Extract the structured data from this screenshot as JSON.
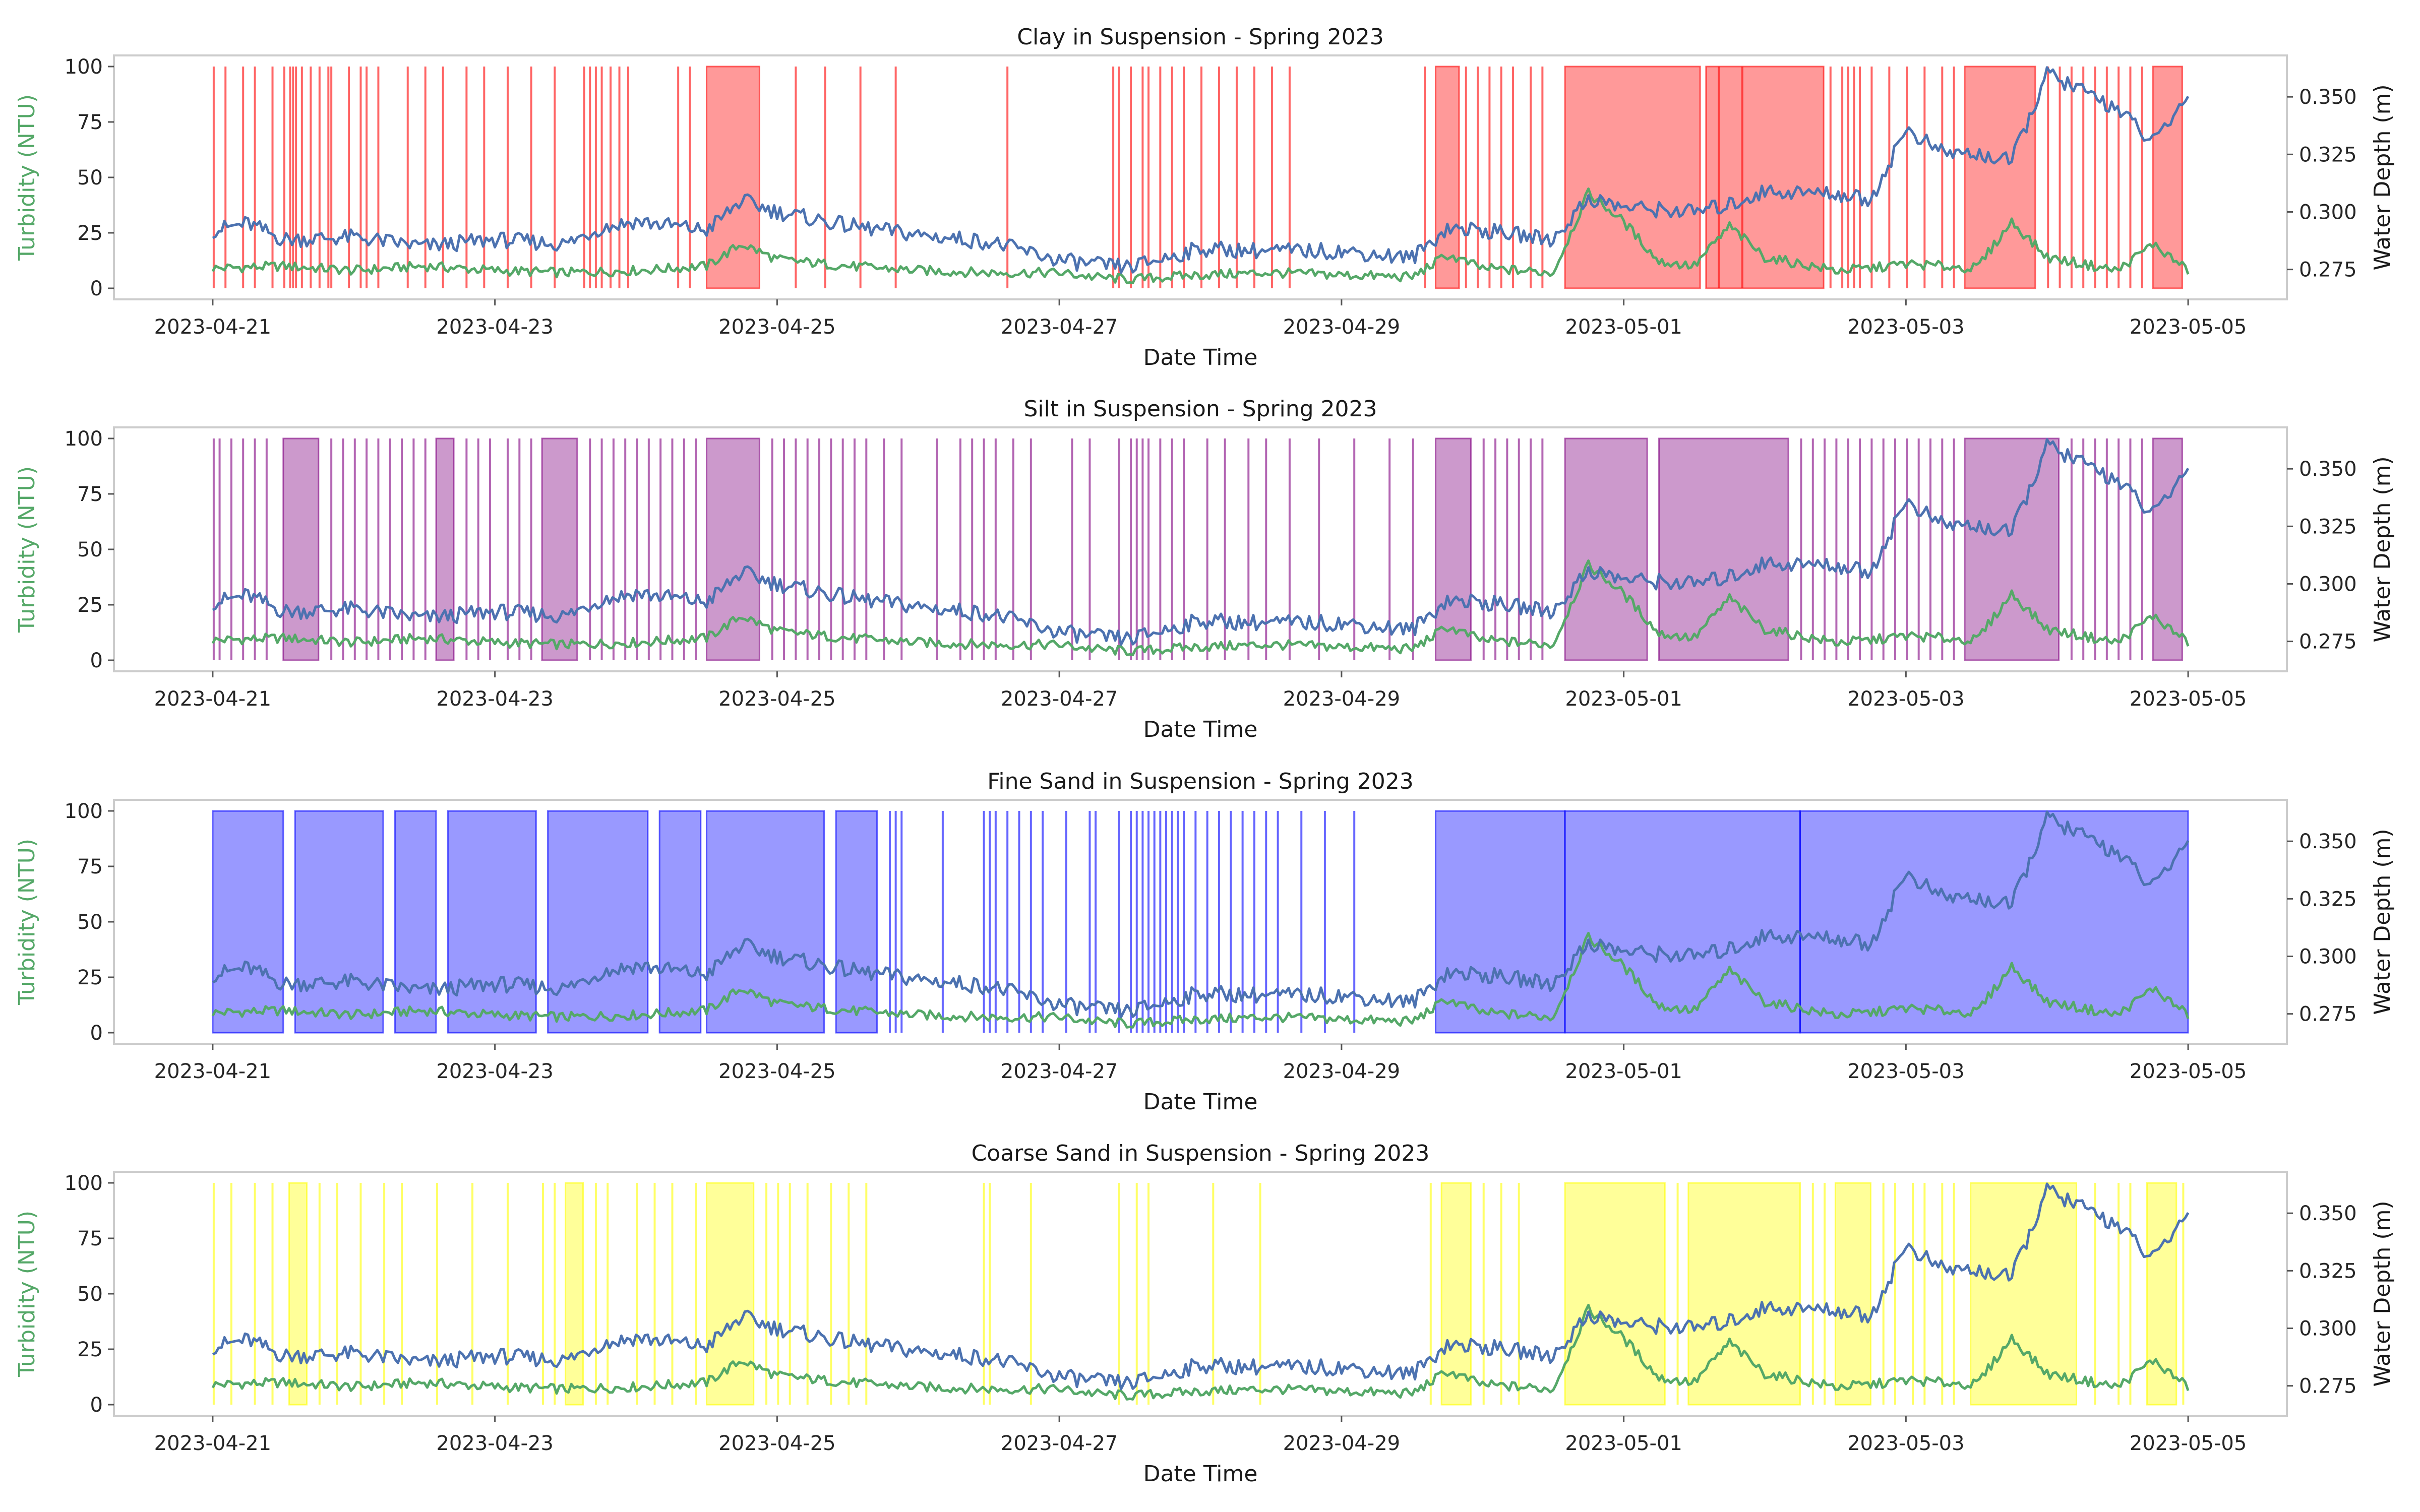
{
  "chart_data": [
    {
      "type": "line",
      "title": "Clay in Suspension - Spring 2023",
      "xlabel": "Date Time",
      "ylabel": "Turbidity (NTU)",
      "y2label": "Water Depth (m)",
      "xlim": [
        "2023-04-20",
        "2023-05-05"
      ],
      "xticks": [
        "2023-04-21",
        "2023-04-23",
        "2023-04-25",
        "2023-04-27",
        "2023-04-29",
        "2023-05-01",
        "2023-05-03",
        "2023-05-05"
      ],
      "ylim": [
        -5,
        105
      ],
      "yticks": [
        0,
        25,
        50,
        75,
        100
      ],
      "y2lim": [
        0.262,
        0.368
      ],
      "y2ticks": [
        "0.275",
        "0.300",
        "0.325",
        "0.350"
      ],
      "grid": false,
      "span_color": "#ff0000",
      "span_alpha": 0.4,
      "spans": [
        [
          "2023-04-24 12:00",
          "2023-04-24 21:00"
        ],
        [
          "2023-04-29 16:00",
          "2023-04-29 20:00"
        ],
        [
          "2023-04-30 14:00",
          "2023-05-01 13:00"
        ],
        [
          "2023-05-01 14:00",
          "2023-05-02 10:00"
        ],
        [
          "2023-05-03 10:00",
          "2023-05-03 22:00"
        ],
        [
          "2023-05-04 18:00",
          "2023-05-04 23:00"
        ]
      ],
      "lines": [
        "2023-04-21 00:00",
        "2023-04-21 02:00",
        "2023-04-21 05:00",
        "2023-04-21 07:00",
        "2023-04-21 10:00",
        "2023-04-21 13:00",
        "2023-04-21 15:00",
        "2023-04-21 18:00",
        "2023-04-21 20:00",
        "2023-04-21 23:00",
        "2023-04-21 14:00",
        "2023-04-21 12:00",
        "2023-04-21 13:30",
        "2023-04-21 16:30",
        "2023-04-21 19:30",
        "2023-04-22 01:00",
        "2023-04-22 02:00",
        "2023-04-22 04:00",
        "2023-04-22 09:00",
        "2023-04-22 12:00",
        "2023-04-22 15:00",
        "2023-04-22 19:00",
        "2023-04-22 22:00",
        "2023-04-23 02:00",
        "2023-04-23 06:00",
        "2023-04-23 10:00",
        "2023-04-23 15:00",
        "2023-04-23 16:00",
        "2023-04-23 17:00",
        "2023-04-23 18:00",
        "2023-04-23 19:30",
        "2023-04-23 21:00",
        "2023-04-23 22:30",
        "2023-04-24 07:00",
        "2023-04-24 09:00",
        "2023-04-25 03:00",
        "2023-04-25 08:00",
        "2023-04-25 14:00",
        "2023-04-25 20:00",
        "2023-04-26 15:00",
        "2023-04-27 09:00",
        "2023-04-27 10:00",
        "2023-04-27 12:00",
        "2023-04-27 14:00",
        "2023-04-27 15:00",
        "2023-04-27 17:00",
        "2023-04-27 19:00",
        "2023-04-27 21:00",
        "2023-04-28 00:00",
        "2023-04-28 03:00",
        "2023-04-28 06:00",
        "2023-04-28 09:00",
        "2023-04-28 12:00",
        "2023-04-28 15:00",
        "2023-04-29 14:00",
        "2023-04-29 21:00",
        "2023-04-29 23:00",
        "2023-04-30 01:00",
        "2023-04-30 03:00",
        "2023-04-30 05:00",
        "2023-04-30 08:00",
        "2023-04-30 10:00",
        "2023-05-01 16:00",
        "2023-05-01 20:00",
        "2023-05-02 11:00",
        "2023-05-02 13:00",
        "2023-05-02 14:00",
        "2023-05-02 15:00",
        "2023-05-02 16:00",
        "2023-05-02 18:00",
        "2023-05-02 21:00",
        "2023-05-03 00:00",
        "2023-05-03 03:00",
        "2023-05-03 06:00",
        "2023-05-03 08:00",
        "2023-05-04 00:00",
        "2023-05-04 02:00",
        "2023-05-04 04:00",
        "2023-05-04 06:00",
        "2023-05-04 08:00",
        "2023-05-04 10:00",
        "2023-05-04 12:00",
        "2023-05-04 14:00",
        "2023-05-04 16:00"
      ]
    },
    {
      "type": "line",
      "title": "Silt in Suspension - Spring 2023",
      "xlabel": "Date Time",
      "ylabel": "Turbidity (NTU)",
      "y2label": "Water Depth (m)",
      "xlim": [
        "2023-04-20",
        "2023-05-05"
      ],
      "xticks": [
        "2023-04-21",
        "2023-04-23",
        "2023-04-25",
        "2023-04-27",
        "2023-04-29",
        "2023-05-01",
        "2023-05-03",
        "2023-05-05"
      ],
      "ylim": [
        -5,
        105
      ],
      "yticks": [
        0,
        25,
        50,
        75,
        100
      ],
      "y2lim": [
        0.262,
        0.368
      ],
      "y2ticks": [
        "0.275",
        "0.300",
        "0.325",
        "0.350"
      ],
      "grid": false,
      "span_color": "#800080",
      "span_alpha": 0.4,
      "spans": [
        [
          "2023-04-21 12:00",
          "2023-04-21 18:00"
        ],
        [
          "2023-04-22 14:00",
          "2023-04-22 17:00"
        ],
        [
          "2023-04-23 08:00",
          "2023-04-23 14:00"
        ],
        [
          "2023-04-24 12:00",
          "2023-04-24 21:00"
        ],
        [
          "2023-04-29 16:00",
          "2023-04-29 22:00"
        ],
        [
          "2023-04-30 14:00",
          "2023-05-01 04:00"
        ],
        [
          "2023-05-01 06:00",
          "2023-05-02 04:00"
        ],
        [
          "2023-05-03 10:00",
          "2023-05-04 02:00"
        ],
        [
          "2023-05-04 18:00",
          "2023-05-04 23:00"
        ]
      ],
      "lines": [
        "2023-04-21 00:00",
        "2023-04-21 01:00",
        "2023-04-21 03:00",
        "2023-04-21 05:00",
        "2023-04-21 07:00",
        "2023-04-21 09:00",
        "2023-04-21 20:00",
        "2023-04-21 22:00",
        "2023-04-22 00:00",
        "2023-04-22 02:00",
        "2023-04-22 04:00",
        "2023-04-22 06:00",
        "2023-04-22 08:00",
        "2023-04-22 10:00",
        "2023-04-22 12:00",
        "2023-04-22 19:00",
        "2023-04-22 21:00",
        "2023-04-22 23:00",
        "2023-04-23 02:00",
        "2023-04-23 04:00",
        "2023-04-23 06:00",
        "2023-04-23 16:00",
        "2023-04-23 18:00",
        "2023-04-23 20:00",
        "2023-04-23 22:00",
        "2023-04-24 00:00",
        "2023-04-24 02:00",
        "2023-04-24 04:00",
        "2023-04-24 06:00",
        "2023-04-24 08:00",
        "2023-04-24 10:00",
        "2023-04-24 23:00",
        "2023-04-25 01:00",
        "2023-04-25 03:00",
        "2023-04-25 05:00",
        "2023-04-25 07:00",
        "2023-04-25 09:00",
        "2023-04-25 11:00",
        "2023-04-25 13:00",
        "2023-04-25 15:00",
        "2023-04-25 18:00",
        "2023-04-25 21:00",
        "2023-04-26 03:00",
        "2023-04-26 07:00",
        "2023-04-26 09:00",
        "2023-04-26 11:00",
        "2023-04-26 13:00",
        "2023-04-26 16:00",
        "2023-04-26 19:00",
        "2023-04-27 02:00",
        "2023-04-27 05:00",
        "2023-04-27 10:00",
        "2023-04-27 12:00",
        "2023-04-27 13:00",
        "2023-04-27 14:00",
        "2023-04-27 15:00",
        "2023-04-27 17:00",
        "2023-04-27 19:00",
        "2023-04-27 21:00",
        "2023-04-28 01:00",
        "2023-04-28 04:00",
        "2023-04-28 08:00",
        "2023-04-28 11:00",
        "2023-04-28 15:00",
        "2023-04-28 20:00",
        "2023-04-29 02:00",
        "2023-04-29 08:00",
        "2023-04-29 12:00",
        "2023-04-30 00:00",
        "2023-04-30 02:00",
        "2023-04-30 04:00",
        "2023-04-30 06:00",
        "2023-04-30 08:00",
        "2023-04-30 10:00",
        "2023-05-02 06:00",
        "2023-05-02 08:00",
        "2023-05-02 10:00",
        "2023-05-02 12:00",
        "2023-05-02 14:00",
        "2023-05-02 16:00",
        "2023-05-02 18:00",
        "2023-05-02 20:00",
        "2023-05-02 22:00",
        "2023-05-03 00:00",
        "2023-05-03 02:00",
        "2023-05-03 04:00",
        "2023-05-03 06:00",
        "2023-05-03 08:00",
        "2023-05-04 04:00",
        "2023-05-04 06:00",
        "2023-05-04 08:00",
        "2023-05-04 10:00",
        "2023-05-04 12:00",
        "2023-05-04 14:00",
        "2023-05-04 16:00"
      ]
    },
    {
      "type": "line",
      "title": "Fine Sand in Suspension - Spring 2023",
      "xlabel": "Date Time",
      "ylabel": "Turbidity (NTU)",
      "y2label": "Water Depth (m)",
      "xlim": [
        "2023-04-20",
        "2023-05-05"
      ],
      "xticks": [
        "2023-04-21",
        "2023-04-23",
        "2023-04-25",
        "2023-04-27",
        "2023-04-29",
        "2023-05-01",
        "2023-05-03",
        "2023-05-05"
      ],
      "ylim": [
        -5,
        105
      ],
      "yticks": [
        0,
        25,
        50,
        75,
        100
      ],
      "y2lim": [
        0.262,
        0.368
      ],
      "y2ticks": [
        "0.275",
        "0.300",
        "0.325",
        "0.350"
      ],
      "grid": false,
      "span_color": "#0000ff",
      "span_alpha": 0.4,
      "spans": [
        [
          "2023-04-21 00:00",
          "2023-04-21 12:00"
        ],
        [
          "2023-04-21 14:00",
          "2023-04-22 05:00"
        ],
        [
          "2023-04-22 07:00",
          "2023-04-22 14:00"
        ],
        [
          "2023-04-22 16:00",
          "2023-04-23 07:00"
        ],
        [
          "2023-04-23 09:00",
          "2023-04-24 02:00"
        ],
        [
          "2023-04-24 04:00",
          "2023-04-24 11:00"
        ],
        [
          "2023-04-24 12:00",
          "2023-04-25 08:00"
        ],
        [
          "2023-04-25 10:00",
          "2023-04-25 17:00"
        ],
        [
          "2023-04-29 16:00",
          "2023-04-30 14:00"
        ],
        [
          "2023-04-30 14:00",
          "2023-05-02 06:00"
        ],
        [
          "2023-05-02 06:00",
          "2023-05-05 00:00"
        ]
      ],
      "lines": [
        "2023-04-25 19:00",
        "2023-04-25 20:00",
        "2023-04-25 21:00",
        "2023-04-26 04:00",
        "2023-04-26 11:00",
        "2023-04-26 12:00",
        "2023-04-26 13:00",
        "2023-04-26 15:00",
        "2023-04-26 17:00",
        "2023-04-26 19:00",
        "2023-04-26 21:00",
        "2023-04-27 01:00",
        "2023-04-27 05:00",
        "2023-04-27 06:00",
        "2023-04-27 10:00",
        "2023-04-27 12:00",
        "2023-04-27 13:00",
        "2023-04-27 14:00",
        "2023-04-27 15:00",
        "2023-04-27 16:00",
        "2023-04-27 17:00",
        "2023-04-27 18:00",
        "2023-04-27 19:00",
        "2023-04-27 20:00",
        "2023-04-27 21:00",
        "2023-04-27 23:00",
        "2023-04-28 01:00",
        "2023-04-28 03:00",
        "2023-04-28 05:00",
        "2023-04-28 07:00",
        "2023-04-28 09:00",
        "2023-04-28 11:00",
        "2023-04-28 13:00",
        "2023-04-28 17:00",
        "2023-04-28 21:00",
        "2023-04-29 02:00"
      ]
    },
    {
      "type": "line",
      "title": "Coarse Sand in Suspension - Spring 2023",
      "xlabel": "Date Time",
      "ylabel": "Turbidity (NTU)",
      "y2label": "Water Depth (m)",
      "xlim": [
        "2023-04-20",
        "2023-05-05"
      ],
      "xticks": [
        "2023-04-21",
        "2023-04-23",
        "2023-04-25",
        "2023-04-27",
        "2023-04-29",
        "2023-05-01",
        "2023-05-03",
        "2023-05-05"
      ],
      "ylim": [
        -5,
        105
      ],
      "yticks": [
        0,
        25,
        50,
        75,
        100
      ],
      "y2lim": [
        0.262,
        0.368
      ],
      "y2ticks": [
        "0.275",
        "0.300",
        "0.325",
        "0.350"
      ],
      "grid": false,
      "span_color": "#ffff00",
      "span_alpha": 0.4,
      "spans": [
        [
          "2023-04-21 13:00",
          "2023-04-21 16:00"
        ],
        [
          "2023-04-23 12:00",
          "2023-04-23 15:00"
        ],
        [
          "2023-04-24 12:00",
          "2023-04-24 20:00"
        ],
        [
          "2023-04-29 17:00",
          "2023-04-29 22:00"
        ],
        [
          "2023-04-30 14:00",
          "2023-05-01 07:00"
        ],
        [
          "2023-05-01 11:00",
          "2023-05-02 06:00"
        ],
        [
          "2023-05-02 12:00",
          "2023-05-02 18:00"
        ],
        [
          "2023-05-03 11:00",
          "2023-05-04 05:00"
        ],
        [
          "2023-05-04 17:00",
          "2023-05-04 22:00"
        ]
      ],
      "lines": [
        "2023-04-21 00:00",
        "2023-04-21 03:00",
        "2023-04-21 07:00",
        "2023-04-21 10:00",
        "2023-04-21 18:00",
        "2023-04-21 21:00",
        "2023-04-22 01:00",
        "2023-04-22 05:00",
        "2023-04-22 08:00",
        "2023-04-22 14:00",
        "2023-04-22 20:00",
        "2023-04-23 02:00",
        "2023-04-23 08:00",
        "2023-04-23 10:00",
        "2023-04-23 17:00",
        "2023-04-23 19:00",
        "2023-04-24 00:00",
        "2023-04-24 03:00",
        "2023-04-24 06:00",
        "2023-04-24 10:00",
        "2023-04-24 22:00",
        "2023-04-25 00:00",
        "2023-04-25 02:00",
        "2023-04-25 05:00",
        "2023-04-25 09:00",
        "2023-04-25 12:00",
        "2023-04-25 15:00",
        "2023-04-26 11:00",
        "2023-04-26 12:00",
        "2023-04-26 19:00",
        "2023-04-27 10:00",
        "2023-04-27 13:00",
        "2023-04-27 15:00",
        "2023-04-28 02:00",
        "2023-04-28 10:00",
        "2023-04-29 15:00",
        "2023-04-30 00:00",
        "2023-04-30 03:00",
        "2023-04-30 06:00",
        "2023-05-01 09:00",
        "2023-05-02 08:00",
        "2023-05-02 10:00",
        "2023-05-02 20:00",
        "2023-05-02 22:00",
        "2023-05-03 01:00",
        "2023-05-03 03:00",
        "2023-05-03 06:00",
        "2023-05-03 08:00",
        "2023-05-04 08:00",
        "2023-05-04 12:00",
        "2023-05-04 14:00",
        "2023-05-04 23:00"
      ]
    }
  ],
  "series": {
    "turbidity": {
      "color": "#55a868",
      "x": [
        "2023-04-21 00:00",
        "2023-04-21 12:00",
        "2023-04-22 00:00",
        "2023-04-22 12:00",
        "2023-04-23 00:00",
        "2023-04-23 12:00",
        "2023-04-24 00:00",
        "2023-04-24 12:00",
        "2023-04-24 18:00",
        "2023-04-25 00:00",
        "2023-04-25 12:00",
        "2023-04-26 00:00",
        "2023-04-26 12:00",
        "2023-04-27 00:00",
        "2023-04-27 06:00",
        "2023-04-27 12:00",
        "2023-04-28 00:00",
        "2023-04-28 12:00",
        "2023-04-29 00:00",
        "2023-04-29 12:00",
        "2023-04-29 18:00",
        "2023-04-30 00:00",
        "2023-04-30 12:00",
        "2023-04-30 18:00",
        "2023-05-01 00:00",
        "2023-05-01 06:00",
        "2023-05-01 12:00",
        "2023-05-01 18:00",
        "2023-05-02 00:00",
        "2023-05-02 12:00",
        "2023-05-02 18:00",
        "2023-05-03 00:00",
        "2023-05-03 12:00",
        "2023-05-03 18:00",
        "2023-05-04 00:00",
        "2023-05-04 12:00",
        "2023-05-04 18:00",
        "2023-05-05 00:00"
      ],
      "values": [
        9,
        10,
        8,
        10,
        8,
        7,
        8,
        10,
        20,
        13,
        10,
        8,
        7,
        7,
        5,
        4,
        6,
        7,
        6,
        5,
        15,
        9,
        7,
        43,
        30,
        12,
        10,
        28,
        14,
        8,
        9,
        11,
        9,
        30,
        14,
        8,
        20,
        8
      ]
    },
    "depth": {
      "color": "#4c72b0",
      "x": [
        "2023-04-21 00:00",
        "2023-04-21 06:00",
        "2023-04-21 12:00",
        "2023-04-22 00:00",
        "2023-04-22 12:00",
        "2023-04-23 00:00",
        "2023-04-23 12:00",
        "2023-04-23 18:00",
        "2023-04-24 00:00",
        "2023-04-24 12:00",
        "2023-04-24 18:00",
        "2023-04-25 00:00",
        "2023-04-25 12:00",
        "2023-04-26 00:00",
        "2023-04-26 12:00",
        "2023-04-27 00:00",
        "2023-04-27 06:00",
        "2023-04-27 12:00",
        "2023-04-28 00:00",
        "2023-04-28 12:00",
        "2023-04-29 00:00",
        "2023-04-29 12:00",
        "2023-04-29 18:00",
        "2023-04-30 00:00",
        "2023-04-30 12:00",
        "2023-04-30 18:00",
        "2023-05-01 00:00",
        "2023-05-01 12:00",
        "2023-05-01 18:00",
        "2023-05-02 00:00",
        "2023-05-02 12:00",
        "2023-05-02 18:00",
        "2023-05-03 00:00",
        "2023-05-03 06:00",
        "2023-05-03 12:00",
        "2023-05-03 18:00",
        "2023-05-04 00:00",
        "2023-05-04 12:00",
        "2023-05-04 18:00",
        "2023-05-05 00:00"
      ],
      "values": [
        0.292,
        0.295,
        0.288,
        0.289,
        0.285,
        0.288,
        0.286,
        0.293,
        0.296,
        0.292,
        0.305,
        0.3,
        0.294,
        0.29,
        0.287,
        0.279,
        0.277,
        0.276,
        0.284,
        0.283,
        0.283,
        0.28,
        0.293,
        0.292,
        0.288,
        0.306,
        0.302,
        0.3,
        0.303,
        0.309,
        0.308,
        0.305,
        0.336,
        0.326,
        0.325,
        0.322,
        0.36,
        0.345,
        0.33,
        0.35
      ]
    }
  }
}
